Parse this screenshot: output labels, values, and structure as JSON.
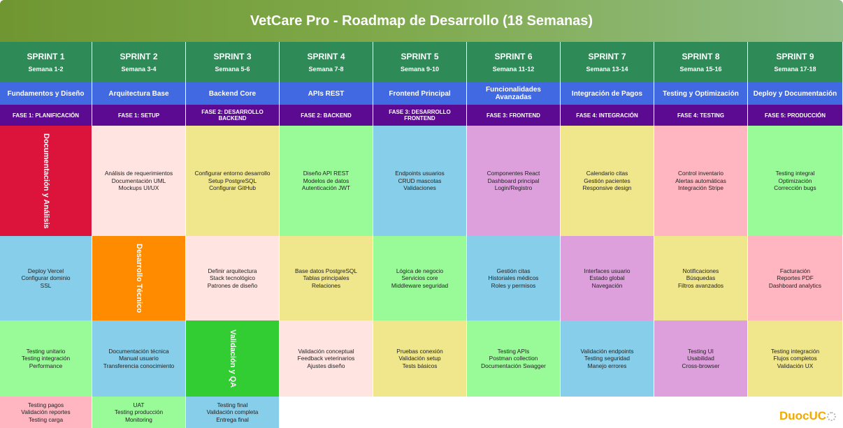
{
  "title": "VetCare Pro - Roadmap de Desarrollo (18 Semanas)",
  "sprints": [
    {
      "name": "SPRINT 1",
      "weeks": "Semana 1-2",
      "topic": "Fundamentos y Diseño",
      "phase": "FASE 1: PLANIFICACIÓN"
    },
    {
      "name": "SPRINT 2",
      "weeks": "Semana 3-4",
      "topic": "Arquitectura Base",
      "phase": "FASE 1: SETUP"
    },
    {
      "name": "SPRINT 3",
      "weeks": "Semana 5-6",
      "topic": "Backend Core",
      "phase": "FASE 2: DESARROLLO BACKEND"
    },
    {
      "name": "SPRINT 4",
      "weeks": "Semana 7-8",
      "topic": "APIs REST",
      "phase": "FASE 2: BACKEND"
    },
    {
      "name": "SPRINT 5",
      "weeks": "Semana 9-10",
      "topic": "Frontend Principal",
      "phase": "FASE 3: DESARROLLO FRONTEND"
    },
    {
      "name": "SPRINT 6",
      "weeks": "Semana 11-12",
      "topic": "Funcionalidades Avanzadas",
      "phase": "FASE 3: FRONTEND"
    },
    {
      "name": "SPRINT 7",
      "weeks": "Semana 13-14",
      "topic": "Integración de Pagos",
      "phase": "FASE 4: INTEGRACIÓN"
    },
    {
      "name": "SPRINT 8",
      "weeks": "Semana 15-16",
      "topic": "Testing y Optimización",
      "phase": "FASE 4: TESTING"
    },
    {
      "name": "SPRINT 9",
      "weeks": "Semana 17-18",
      "topic": "Deploy y Documentación",
      "phase": "FASE 5: PRODUCCIÓN"
    }
  ],
  "grid": {
    "row1": [
      {
        "label": "Documentación y Análisis",
        "color": "#dc143c"
      },
      {
        "lines": [
          "Análisis de requerimientos",
          "Documentación UML",
          "Mockups UI/UX"
        ],
        "color": "#ffe4e1"
      },
      {
        "lines": [
          "Configurar entorno desarrollo",
          "Setup PostgreSQL",
          "Configurar GitHub"
        ],
        "color": "#f0e68c"
      },
      {
        "lines": [
          "Diseño API REST",
          "Modelos de datos",
          "Autenticación JWT"
        ],
        "color": "#98fb98"
      },
      {
        "lines": [
          "Endpoints usuarios",
          "CRUD mascotas",
          "Validaciones"
        ],
        "color": "#87ceeb"
      },
      {
        "lines": [
          "Componentes React",
          "Dashboard principal",
          "Login/Registro"
        ],
        "color": "#dda0dd"
      },
      {
        "lines": [
          "Calendario citas",
          "Gestión pacientes",
          "Responsive design"
        ],
        "color": "#f0e68c"
      },
      {
        "lines": [
          "Control inventario",
          "Alertas automáticas",
          "Integración Stripe"
        ],
        "color": "#ffb6c1"
      },
      {
        "lines": [
          "Testing integral",
          "Optimización",
          "Corrección bugs"
        ],
        "color": "#98fb98"
      }
    ],
    "row2": [
      {
        "lines": [
          "Deploy Vercel",
          "Configurar dominio",
          "SSL"
        ],
        "color": "#87ceeb"
      },
      {
        "label": "Desarrollo Técnico",
        "color": "#ff8c00"
      },
      {
        "lines": [
          "Definir arquitectura",
          "Stack tecnológico",
          "Patrones de diseño"
        ],
        "color": "#ffe4e1"
      },
      {
        "lines": [
          "Base datos PostgreSQL",
          "Tablas principales",
          "Relaciones"
        ],
        "color": "#f0e68c"
      },
      {
        "lines": [
          "Lógica de negocio",
          "Servicios core",
          "Middleware seguridad"
        ],
        "color": "#98fb98"
      },
      {
        "lines": [
          "Gestión citas",
          "Historiales médicos",
          "Roles y permisos"
        ],
        "color": "#87ceeb"
      },
      {
        "lines": [
          "Interfaces usuario",
          "Estado global",
          "Navegación"
        ],
        "color": "#dda0dd"
      },
      {
        "lines": [
          "Notificaciones",
          "Búsquedas",
          "Filtros avanzados"
        ],
        "color": "#f0e68c"
      },
      {
        "lines": [
          "Facturación",
          "Reportes PDF",
          "Dashboard analytics"
        ],
        "color": "#ffb6c1"
      }
    ],
    "row3": [
      {
        "lines": [
          "Testing unitario",
          "Testing integración",
          "Performance"
        ],
        "color": "#98fb98"
      },
      {
        "lines": [
          "Documentación técnica",
          "Manual usuario",
          "Transferencia conocimiento"
        ],
        "color": "#87ceeb"
      },
      {
        "label": "Validación y QA",
        "color": "#32cd32"
      },
      {
        "lines": [
          "Validación conceptual",
          "Feedback veterinarios",
          "Ajustes diseño"
        ],
        "color": "#ffe4e1"
      },
      {
        "lines": [
          "Pruebas conexión",
          "Validación setup",
          "Tests básicos"
        ],
        "color": "#f0e68c"
      },
      {
        "lines": [
          "Testing APIs",
          "Postman collection",
          "Documentación Swagger"
        ],
        "color": "#98fb98"
      },
      {
        "lines": [
          "Validación endpoints",
          "Testing seguridad",
          "Manejo errores"
        ],
        "color": "#87ceeb"
      },
      {
        "lines": [
          "Testing UI",
          "Usabilidad",
          "Cross-browser"
        ],
        "color": "#dda0dd"
      },
      {
        "lines": [
          "Testing integración",
          "Flujos completos",
          "Validación UX"
        ],
        "color": "#f0e68c"
      }
    ],
    "row4": [
      {
        "lines": [
          "Testing pagos",
          "Validación reportes",
          "Testing carga"
        ],
        "color": "#ffb6c1"
      },
      {
        "lines": [
          "UAT",
          "Testing producción",
          "Monitoring"
        ],
        "color": "#98fb98"
      },
      {
        "lines": [
          "Testing final",
          "Validación completa",
          "Entrega final"
        ],
        "color": "#87ceeb"
      }
    ]
  },
  "logo": {
    "text": "Duoc",
    "accent": "UC",
    "color": "#f2a900"
  }
}
